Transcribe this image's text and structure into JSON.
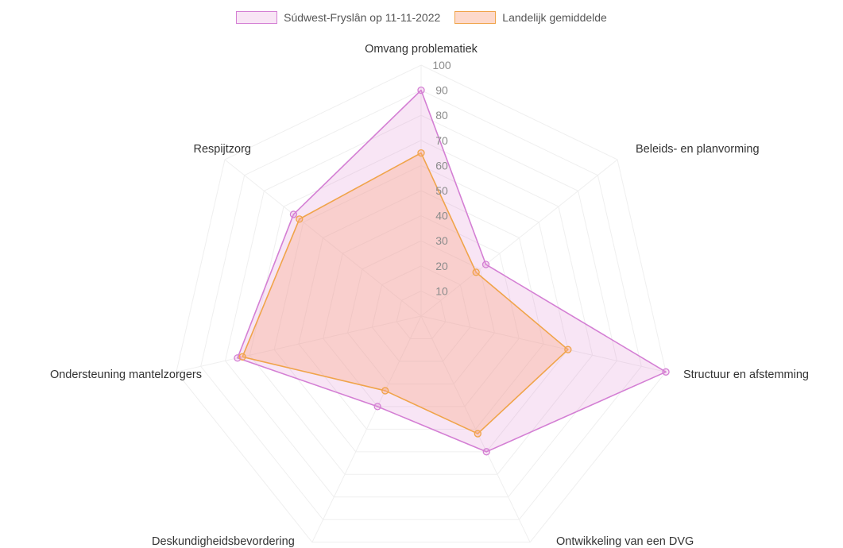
{
  "chart_data": {
    "type": "radar",
    "axes": [
      "Omvang problematiek",
      "Beleids- en planvorming",
      "Structuur en afstemming",
      "Ontwikkeling van een DVG",
      "Deskundigheidsbevordering",
      "Ondersteuning mantelzorgers",
      "Respijtzorg"
    ],
    "r_ticks": [
      "10",
      "20",
      "30",
      "40",
      "50",
      "60",
      "70",
      "80",
      "90",
      "100"
    ],
    "rlim": [
      0,
      100
    ],
    "grid": true,
    "legend_position": "top",
    "series": [
      {
        "name": "Súdwest-Fryslân op 11-11-2022",
        "values": [
          90,
          33,
          100,
          60,
          40,
          75,
          65
        ],
        "stroke": "#d47fd4",
        "fill": "rgba(225,135,210,0.22)"
      },
      {
        "name": "Landelijk gemiddelde",
        "values": [
          65,
          28,
          60,
          52,
          33,
          73,
          62
        ],
        "stroke": "#f0a44a",
        "fill": "rgba(250,170,140,0.38)"
      }
    ]
  }
}
